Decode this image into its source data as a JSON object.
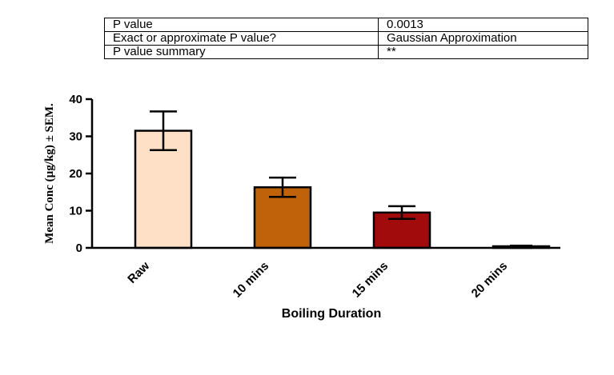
{
  "stats_table": [
    {
      "label": "P value",
      "value": "0.0013"
    },
    {
      "label": "Exact or approximate P value?",
      "value": "Gaussian Approximation"
    },
    {
      "label": "P value summary",
      "value": "**"
    }
  ],
  "chart_data": {
    "type": "bar",
    "categories": [
      "Raw",
      "10 mins",
      "15 mins",
      "20 mins"
    ],
    "values": [
      31.5,
      16.3,
      9.5,
      0.3
    ],
    "errors": [
      5.2,
      2.6,
      1.7,
      0.3
    ],
    "colors": [
      "#fde0c5",
      "#c0620a",
      "#a20b0b",
      "#7a0a0a"
    ],
    "title": "",
    "xlabel": "Boiling Duration",
    "ylabel": "Mean Conc (µg/kg) ± SEM.",
    "ylim": [
      0,
      40
    ],
    "yticks": [
      0,
      10,
      20,
      30,
      40
    ],
    "grid": false,
    "legend": "none"
  }
}
